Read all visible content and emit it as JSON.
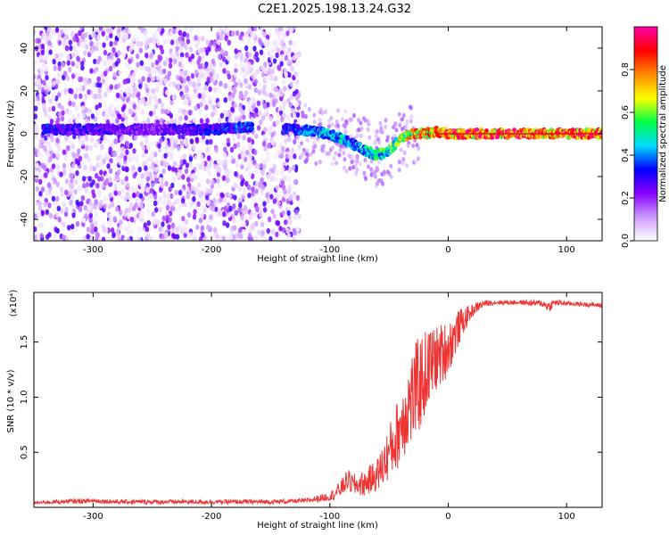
{
  "page_title": "C2E1.2025.198.13.24.G32",
  "chart_data": [
    {
      "type": "heatmap",
      "xlabel": "Height of straight line (km)",
      "ylabel": "Frequency (Hz)",
      "xlim": [
        -350,
        130
      ],
      "ylim": [
        -50,
        50
      ],
      "xticks": [
        -300,
        -200,
        -100,
        0,
        100
      ],
      "yticks": [
        -40,
        -20,
        0,
        20,
        40
      ],
      "grid": false,
      "colorbar": {
        "label": "Normalized spectral amplitude",
        "range": [
          0,
          1
        ],
        "ticks": [
          0.0,
          0.2,
          0.4,
          0.6,
          0.8
        ],
        "colormap": [
          "#ffffff",
          "#cc99ff",
          "#8800ff",
          "#0000ff",
          "#00ddff",
          "#00ff44",
          "#ffff00",
          "#ff8800",
          "#ff0000",
          "#ff00aa"
        ]
      },
      "band": {
        "x": [
          -340,
          -300,
          -250,
          -200,
          -170,
          -130,
          -110,
          -90,
          -80,
          -70,
          -60,
          -50,
          -40,
          -30,
          -20,
          -10,
          0,
          50,
          100,
          130
        ],
        "frequency": [
          2,
          2,
          2,
          2,
          3,
          2,
          1,
          -2,
          -5,
          -8,
          -10,
          -8,
          -2,
          0,
          0,
          1,
          0,
          0,
          0,
          0
        ],
        "amplitude": [
          0.35,
          0.3,
          0.25,
          0.35,
          0.4,
          0.4,
          0.45,
          0.5,
          0.4,
          0.5,
          0.55,
          0.6,
          0.7,
          0.8,
          0.8,
          0.85,
          0.95,
          0.95,
          0.95,
          0.95
        ]
      },
      "noise_region": {
        "x_from": -350,
        "x_to": -125,
        "frequency_span": [
          -50,
          50
        ]
      }
    },
    {
      "type": "line",
      "xlabel": "Height of straight line (km)",
      "ylabel": "SNR (10 * v/v)",
      "y_multiplier": "(x10⁴)",
      "xlim": [
        -350,
        130
      ],
      "ylim": [
        0,
        1.95
      ],
      "xticks": [
        -300,
        -200,
        -100,
        0,
        100
      ],
      "yticks": [
        0.5,
        1.0,
        1.5
      ],
      "ytick_labels": [
        "0.5",
        "1.0",
        "1.5"
      ],
      "grid": false,
      "series": [
        {
          "color": "#ee3333",
          "x": [
            -350,
            -330,
            -300,
            -280,
            -250,
            -200,
            -150,
            -120,
            -110,
            -100,
            -95,
            -90,
            -85,
            -80,
            -70,
            -60,
            -55,
            -50,
            -45,
            -40,
            -35,
            -30,
            -25,
            -20,
            -15,
            -10,
            -5,
            0,
            5,
            10,
            15,
            20,
            25,
            30,
            40,
            60,
            80,
            85,
            90,
            100,
            120,
            130
          ],
          "values": [
            0.04,
            0.05,
            0.06,
            0.05,
            0.05,
            0.05,
            0.05,
            0.06,
            0.08,
            0.1,
            0.13,
            0.18,
            0.25,
            0.2,
            0.22,
            0.3,
            0.38,
            0.5,
            0.6,
            0.75,
            0.9,
            1.0,
            1.1,
            1.2,
            1.3,
            1.35,
            1.4,
            1.45,
            1.55,
            1.65,
            1.72,
            1.78,
            1.82,
            1.85,
            1.86,
            1.86,
            1.85,
            1.82,
            1.86,
            1.85,
            1.84,
            1.83
          ],
          "noise": [
            0.01,
            0.02,
            0.02,
            0.02,
            0.02,
            0.02,
            0.02,
            0.02,
            0.03,
            0.04,
            0.06,
            0.08,
            0.1,
            0.1,
            0.12,
            0.15,
            0.2,
            0.25,
            0.3,
            0.35,
            0.4,
            0.45,
            0.45,
            0.4,
            0.35,
            0.3,
            0.28,
            0.25,
            0.2,
            0.15,
            0.1,
            0.06,
            0.04,
            0.03,
            0.02,
            0.02,
            0.03,
            0.05,
            0.03,
            0.02,
            0.02,
            0.02
          ]
        }
      ]
    }
  ]
}
